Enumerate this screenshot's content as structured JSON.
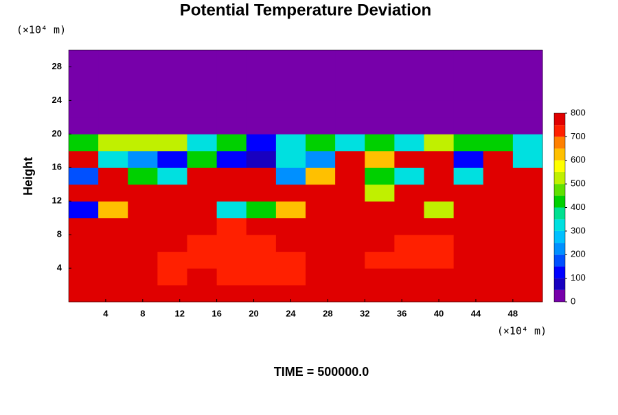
{
  "chart_data": {
    "type": "contour",
    "title": "Potential Temperature Deviation",
    "y_label": "Height",
    "y_unit": "(×10⁴ m)",
    "x_unit": "(×10⁴ m)",
    "footer": "TIME = 500000.0",
    "xlim": [
      0,
      51.2
    ],
    "ylim": [
      0,
      30
    ],
    "xticks": [
      4,
      8,
      12,
      16,
      20,
      24,
      28,
      32,
      36,
      40,
      44,
      48
    ],
    "yticks": [
      4,
      8,
      12,
      16,
      20,
      24,
      28
    ],
    "x": [
      1.6,
      4.8,
      8,
      11.2,
      14.4,
      17.6,
      20.8,
      24,
      27.2,
      30.4,
      33.6,
      36.8,
      40,
      43.2,
      46.4,
      49.6
    ],
    "y": [
      1,
      3,
      5,
      7,
      9,
      11,
      13,
      15,
      17,
      19,
      21,
      23,
      25,
      27,
      29
    ],
    "values": [
      [
        780,
        780,
        780,
        780,
        780,
        780,
        780,
        780,
        780,
        780,
        780,
        780,
        780,
        780,
        780,
        780
      ],
      [
        780,
        780,
        780,
        700,
        780,
        700,
        700,
        700,
        780,
        780,
        780,
        780,
        780,
        780,
        780,
        780
      ],
      [
        780,
        780,
        780,
        700,
        700,
        700,
        700,
        700,
        780,
        780,
        700,
        700,
        700,
        780,
        780,
        780
      ],
      [
        780,
        780,
        780,
        780,
        700,
        700,
        700,
        780,
        780,
        780,
        780,
        700,
        700,
        780,
        780,
        780
      ],
      [
        780,
        780,
        780,
        780,
        780,
        700,
        780,
        780,
        780,
        780,
        780,
        780,
        780,
        780,
        780,
        780
      ],
      [
        100,
        600,
        780,
        780,
        780,
        300,
        400,
        600,
        780,
        780,
        780,
        780,
        500,
        780,
        780,
        780
      ],
      [
        780,
        780,
        780,
        780,
        780,
        780,
        780,
        780,
        780,
        780,
        500,
        780,
        780,
        780,
        780,
        780
      ],
      [
        150,
        780,
        400,
        300,
        780,
        780,
        780,
        200,
        600,
        780,
        400,
        300,
        780,
        300,
        780,
        780
      ],
      [
        780,
        300,
        200,
        100,
        400,
        100,
        50,
        300,
        200,
        780,
        600,
        780,
        780,
        100,
        780,
        300
      ],
      [
        400,
        500,
        500,
        500,
        300,
        400,
        100,
        300,
        400,
        300,
        400,
        300,
        500,
        400,
        400,
        300
      ],
      [
        0,
        0,
        0,
        0,
        0,
        0,
        0,
        0,
        0,
        0,
        0,
        0,
        0,
        0,
        0,
        0
      ],
      [
        0,
        0,
        0,
        0,
        0,
        0,
        0,
        0,
        0,
        0,
        0,
        0,
        0,
        0,
        0,
        0
      ],
      [
        0,
        0,
        0,
        0,
        0,
        0,
        0,
        0,
        0,
        0,
        0,
        0,
        0,
        0,
        0,
        0
      ],
      [
        0,
        0,
        0,
        0,
        0,
        0,
        0,
        0,
        0,
        0,
        0,
        0,
        0,
        0,
        0,
        0
      ],
      [
        0,
        0,
        0,
        0,
        0,
        0,
        0,
        0,
        0,
        0,
        0,
        0,
        0,
        0,
        0,
        0
      ]
    ],
    "levels": [
      0,
      50,
      100,
      150,
      200,
      250,
      300,
      350,
      400,
      450,
      500,
      550,
      600,
      650,
      700,
      750,
      800
    ],
    "colors": [
      "#7700aa",
      "#1800c0",
      "#0000ff",
      "#0050ff",
      "#0090ff",
      "#00c0ff",
      "#00e0e0",
      "#00e090",
      "#00d000",
      "#60e000",
      "#c0f000",
      "#ffff00",
      "#ffc000",
      "#ff8000",
      "#ff2000",
      "#e00000"
    ],
    "top_color": "#ff9999",
    "cbar_ticks": [
      0,
      100,
      200,
      300,
      400,
      500,
      600,
      700,
      800
    ]
  }
}
